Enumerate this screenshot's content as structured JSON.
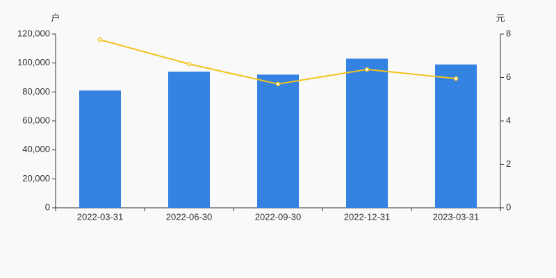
{
  "chart_data": {
    "type": "bar",
    "y_label": "户",
    "y2_label": "元",
    "categories": [
      "2022-03-31",
      "2022-06-30",
      "2022-09-30",
      "2022-12-31",
      "2023-03-31"
    ],
    "series": [
      {
        "type": "bar",
        "color": "#3482e2",
        "values": [
          81000,
          94000,
          92000,
          103000,
          99000
        ]
      },
      {
        "type": "line",
        "color": "#f2c21b",
        "axis": "y2",
        "values": [
          7.74,
          6.62,
          5.7,
          6.37,
          5.95
        ]
      }
    ],
    "ylim": [
      0,
      120000
    ],
    "yticks": [
      0,
      {
        "value": 20000,
        "label": "20,000"
      },
      {
        "value": 40000,
        "label": "40,000"
      },
      {
        "value": 60000,
        "label": "60,000"
      },
      {
        "value": 80000,
        "label": "80,000"
      },
      {
        "value": 100000,
        "label": "100,000"
      },
      {
        "value": 120000,
        "label": "120,000"
      }
    ],
    "y2lim": [
      0,
      8
    ],
    "y2ticks": [
      0,
      2,
      4,
      6,
      8
    ]
  }
}
